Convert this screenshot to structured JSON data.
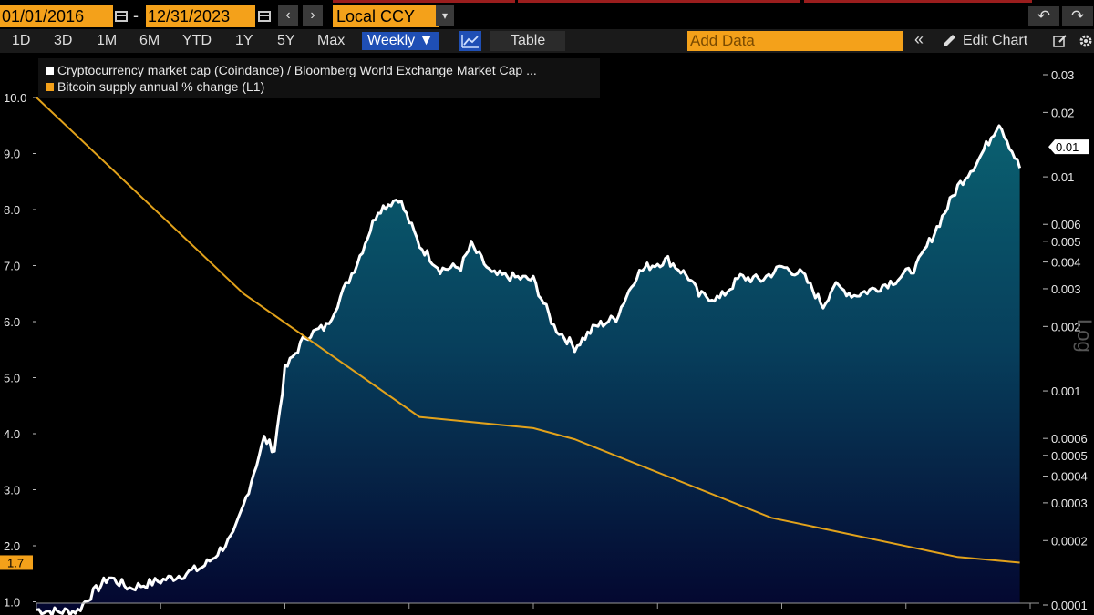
{
  "toolbar": {
    "start_date": "01/01/2016",
    "date_separator": "-",
    "end_date": "12/31/2023",
    "prev_label": "‹",
    "next_label": "›",
    "currency": "Local CCY",
    "caret": "▾",
    "undo_label": "↶",
    "redo_label": "↷"
  },
  "periods": [
    "1D",
    "3D",
    "1M",
    "6M",
    "YTD",
    "1Y",
    "5Y",
    "Max"
  ],
  "frequency": "Weekly ▼",
  "table_label": "Table",
  "add_data_placeholder": "Add Data",
  "collapse_label": "«",
  "edit_chart_label": "Edit Chart",
  "legend": {
    "series1": "Cryptocurrency market cap (Coindance) / Bloomberg World Exchange Market Cap ...",
    "series2": "Bitcoin supply annual % change  (L1)"
  },
  "colors": {
    "accent": "#f4a11a",
    "active_tab": "#1f4fb5",
    "series1_line": "#ffffff",
    "series2_line": "#e2a21b",
    "area_top": "#0a5a6a",
    "area_bottom": "#05073a"
  },
  "chart_data": {
    "type": "area",
    "x_range": [
      "2016-01",
      "2023-12"
    ],
    "left_axis": {
      "ticks": [
        "10.0",
        "9.0",
        "8.0",
        "7.0",
        "6.0",
        "5.0",
        "4.0",
        "3.0",
        "2.0",
        "1.0"
      ],
      "ylim": [
        1.0,
        10.0
      ],
      "last_value_label": "1.7"
    },
    "right_axis": {
      "scale": "log",
      "label": "Log",
      "ticks": [
        "0.03",
        "0.02",
        "0.01",
        "0.006",
        "0.005",
        "0.004",
        "0.003",
        "0.002",
        "0.001",
        "0.0006",
        "0.0005",
        "0.0004",
        "0.0003",
        "0.0002",
        "0.0001"
      ],
      "last_value_label": "0.01",
      "ylim": [
        0.0001,
        0.03
      ]
    },
    "series": [
      {
        "name": "Cryptocurrency market cap (Coindance) / Bloomberg World Exchange Market Cap ...",
        "axis": "right",
        "style": "white line, teal-to-navy filled area",
        "x": [
          "2016-01",
          "2016-03",
          "2016-05",
          "2016-06",
          "2016-08",
          "2016-10",
          "2017-01",
          "2017-03",
          "2017-05",
          "2017-06",
          "2017-08",
          "2017-09",
          "2017-11",
          "2017-12",
          "2018-01",
          "2018-03",
          "2018-05",
          "2018-08",
          "2018-10",
          "2018-12",
          "2019-02",
          "2019-04",
          "2019-06",
          "2019-07",
          "2019-09",
          "2019-11",
          "2020-01",
          "2020-03",
          "2020-05",
          "2020-07",
          "2020-09",
          "2020-11",
          "2020-12",
          "2021-02",
          "2021-04",
          "2021-05",
          "2021-07",
          "2021-09",
          "2021-11",
          "2022-01",
          "2022-03",
          "2022-05",
          "2022-06",
          "2022-08",
          "2022-10",
          "2022-12",
          "2023-02",
          "2023-04",
          "2023-06",
          "2023-08",
          "2023-10",
          "2023-12"
        ],
        "values": [
          9.5e-05,
          9.3e-05,
          9.4e-05,
          0.000108,
          0.000135,
          0.00012,
          0.00013,
          0.000138,
          0.00015,
          0.000165,
          0.00021,
          0.00029,
          0.0006,
          0.00053,
          0.00125,
          0.0018,
          0.002,
          0.004,
          0.007,
          0.008,
          0.0048,
          0.0037,
          0.0038,
          0.0048,
          0.0035,
          0.0034,
          0.0033,
          0.002,
          0.0016,
          0.002,
          0.0022,
          0.0035,
          0.0038,
          0.0041,
          0.0034,
          0.0028,
          0.0027,
          0.0034,
          0.0033,
          0.0038,
          0.0035,
          0.0025,
          0.0031,
          0.0028,
          0.003,
          0.0033,
          0.0038,
          0.0058,
          0.009,
          0.012,
          0.018,
          0.011
        ]
      },
      {
        "name": "Bitcoin supply annual % change  (L1)",
        "axis": "left",
        "style": "orange line",
        "x": [
          "2016-01",
          "2017-09",
          "2019-02",
          "2020-01",
          "2020-05",
          "2021-12",
          "2023-06",
          "2023-12"
        ],
        "values": [
          10.0,
          6.5,
          4.3,
          4.1,
          3.9,
          2.5,
          1.8,
          1.7
        ]
      }
    ]
  }
}
